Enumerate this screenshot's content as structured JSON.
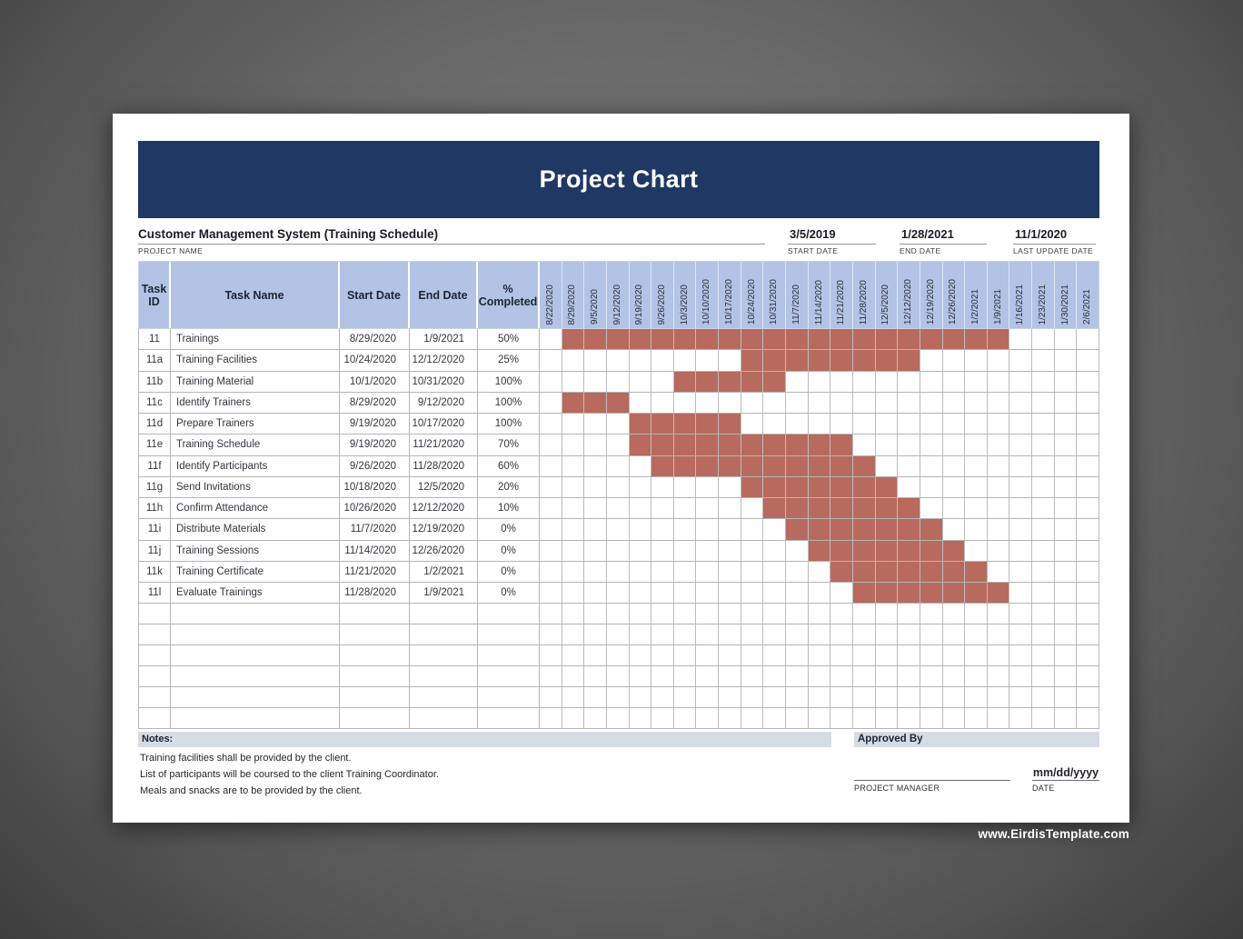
{
  "page": {
    "title": "Project Chart",
    "project_name": "Customer Management System (Training Schedule)",
    "project_name_label": "PROJECT NAME",
    "start_date": {
      "value": "3/5/2019",
      "label": "START DATE"
    },
    "end_date": {
      "value": "1/28/2021",
      "label": "END DATE"
    },
    "last_update": {
      "value": "11/1/2020",
      "label": "LAST UPDATE DATE"
    }
  },
  "table_headers": {
    "task_id": "Task ID",
    "task_name": "Task Name",
    "start_date": "Start Date",
    "end_date": "End Date",
    "pct_completed": "% Completed"
  },
  "chart_data": {
    "type": "gantt",
    "title": "Project Chart",
    "week_columns": [
      "8/22/2020",
      "8/29/2020",
      "9/5/2020",
      "9/12/2020",
      "9/19/2020",
      "9/26/2020",
      "10/3/2020",
      "10/10/2020",
      "10/17/2020",
      "10/24/2020",
      "10/31/2020",
      "11/7/2020",
      "11/14/2020",
      "11/21/2020",
      "11/28/2020",
      "12/5/2020",
      "12/12/2020",
      "12/19/2020",
      "12/26/2020",
      "1/2/2021",
      "1/9/2021",
      "1/16/2021",
      "1/23/2021",
      "1/30/2021",
      "2/6/2021"
    ],
    "tasks": [
      {
        "id": "11",
        "name": "Trainings",
        "start_date": "8/29/2020",
        "end_date": "1/9/2021",
        "pct_completed": "50%",
        "bar_start_col": 2,
        "bar_end_col": 21
      },
      {
        "id": "11a",
        "name": "Training Facilities",
        "start_date": "10/24/2020",
        "end_date": "12/12/2020",
        "pct_completed": "25%",
        "bar_start_col": 10,
        "bar_end_col": 17
      },
      {
        "id": "11b",
        "name": "Training Material",
        "start_date": "10/1/2020",
        "end_date": "10/31/2020",
        "pct_completed": "100%",
        "bar_start_col": 7,
        "bar_end_col": 11
      },
      {
        "id": "11c",
        "name": "Identify Trainers",
        "start_date": "8/29/2020",
        "end_date": "9/12/2020",
        "pct_completed": "100%",
        "bar_start_col": 2,
        "bar_end_col": 4
      },
      {
        "id": "11d",
        "name": "Prepare Trainers",
        "start_date": "9/19/2020",
        "end_date": "10/17/2020",
        "pct_completed": "100%",
        "bar_start_col": 5,
        "bar_end_col": 9
      },
      {
        "id": "11e",
        "name": "Training Schedule",
        "start_date": "9/19/2020",
        "end_date": "11/21/2020",
        "pct_completed": "70%",
        "bar_start_col": 5,
        "bar_end_col": 14
      },
      {
        "id": "11f",
        "name": "Identify Participants",
        "start_date": "9/26/2020",
        "end_date": "11/28/2020",
        "pct_completed": "60%",
        "bar_start_col": 6,
        "bar_end_col": 15
      },
      {
        "id": "11g",
        "name": "Send Invitations",
        "start_date": "10/18/2020",
        "end_date": "12/5/2020",
        "pct_completed": "20%",
        "bar_start_col": 10,
        "bar_end_col": 16
      },
      {
        "id": "11h",
        "name": "Confirm Attendance",
        "start_date": "10/26/2020",
        "end_date": "12/12/2020",
        "pct_completed": "10%",
        "bar_start_col": 11,
        "bar_end_col": 17
      },
      {
        "id": "11i",
        "name": "Distribute Materials",
        "start_date": "11/7/2020",
        "end_date": "12/19/2020",
        "pct_completed": "0%",
        "bar_start_col": 12,
        "bar_end_col": 18
      },
      {
        "id": "11j",
        "name": "Training Sessions",
        "start_date": "11/14/2020",
        "end_date": "12/26/2020",
        "pct_completed": "0%",
        "bar_start_col": 13,
        "bar_end_col": 19
      },
      {
        "id": "11k",
        "name": "Training Certificate",
        "start_date": "11/21/2020",
        "end_date": "1/2/2021",
        "pct_completed": "0%",
        "bar_start_col": 14,
        "bar_end_col": 20
      },
      {
        "id": "11l",
        "name": "Evaluate Trainings",
        "start_date": "11/28/2020",
        "end_date": "1/9/2021",
        "pct_completed": "0%",
        "bar_start_col": 15,
        "bar_end_col": 21
      }
    ],
    "empty_rows": 6,
    "legend_position": "none",
    "grid": true
  },
  "notes": {
    "header": "Notes:",
    "lines": [
      "Training facilities shall be provided by the client.",
      "List of participants will be coursed to the client Training Coordinator.",
      "Meals and snacks are to be provided by the client."
    ]
  },
  "approval": {
    "header": "Approved By",
    "signature_label": "PROJECT MANAGER",
    "date_placeholder": "mm/dd/yyyy",
    "date_label": "DATE"
  },
  "footer": {
    "watermark": "www.EirdisTemplate.com"
  },
  "colors": {
    "title_bar": "#1f3864",
    "table_header_fill": "#b2c3e5",
    "gantt_bar": "#b96a5e",
    "section_header_fill": "#d6dce4",
    "page_background": "#ffffff",
    "backdrop": "#5a5a5a"
  }
}
